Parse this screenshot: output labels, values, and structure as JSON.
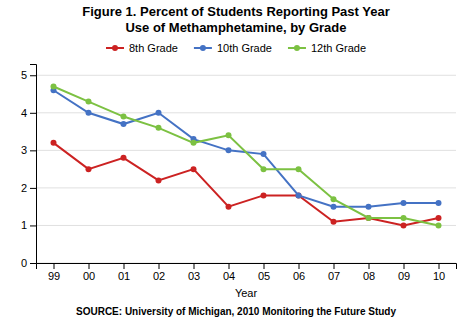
{
  "chart_data": {
    "type": "line",
    "title": "Figure 1. Percent of Students Reporting Past Year",
    "subtitle": "Use of Methamphetamine, by Grade",
    "x_label": "Year",
    "annotations": [
      "SOURCE: University of Michigan, 2010 Monitoring the Future Study"
    ],
    "categories": [
      "99",
      "00",
      "01",
      "02",
      "03",
      "04",
      "05",
      "06",
      "07",
      "08",
      "09",
      "10"
    ],
    "series": [
      {
        "name": "8th Grade",
        "color": "#CC2222",
        "marker": "circle",
        "values": [
          3.2,
          2.5,
          2.8,
          2.2,
          2.5,
          1.5,
          1.8,
          1.8,
          1.1,
          1.2,
          1.0,
          1.2
        ]
      },
      {
        "name": "10th Grade",
        "color": "#4472C4",
        "marker": "circle",
        "values": [
          4.6,
          4.0,
          3.7,
          4.0,
          3.3,
          3.0,
          2.9,
          1.8,
          1.5,
          1.5,
          1.6,
          1.6
        ]
      },
      {
        "name": "12th Grade",
        "color": "#7CC142",
        "marker": "circle",
        "values": [
          4.7,
          4.3,
          3.9,
          3.6,
          3.2,
          3.4,
          2.5,
          2.5,
          1.7,
          1.2,
          1.2,
          1.0
        ]
      }
    ],
    "ylim": [
      0,
      5.3
    ],
    "yticks": [
      0,
      1,
      2,
      3,
      4,
      5
    ],
    "grid": true,
    "legend": "top"
  }
}
